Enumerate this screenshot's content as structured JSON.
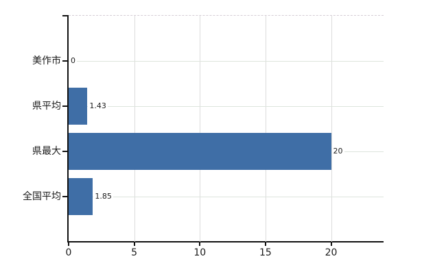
{
  "chart_data": {
    "type": "bar",
    "orientation": "horizontal",
    "title": "",
    "categories": [
      "美作市",
      "県平均",
      "県最大",
      "全国平均"
    ],
    "values": [
      0,
      1.43,
      20,
      1.85
    ],
    "value_labels": [
      "0",
      "1.43",
      "20",
      "1.85"
    ],
    "x_ticks": [
      0,
      5,
      10,
      15,
      20
    ],
    "x_tick_labels": [
      "0",
      "5",
      "10",
      "15",
      "20"
    ],
    "xlim": [
      0,
      24
    ],
    "grid": true,
    "legend": false,
    "colors": {
      "bar": "#3f6ea6",
      "h_grid": "#dde4dc",
      "v_grid": "#dcdcdc",
      "axis": "#111111",
      "top_border": "#d5ccd5",
      "text": "#1a1a1a"
    }
  }
}
